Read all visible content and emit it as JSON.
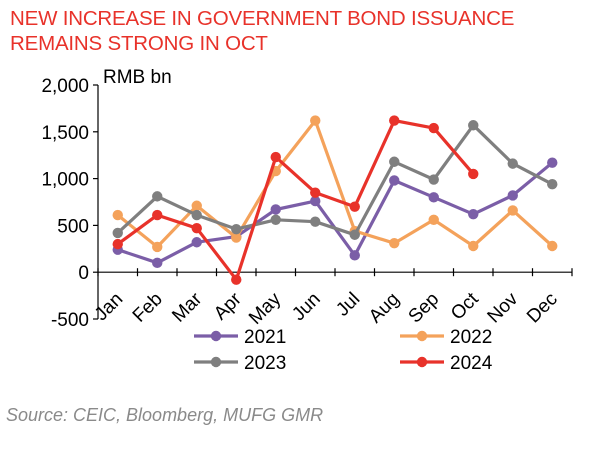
{
  "title_lines": [
    "NEW INCREASE IN GOVERNMENT BOND ISSUANCE",
    "REMAINS STRONG IN OCT"
  ],
  "source": "Source: CEIC, Bloomberg, MUFG GMR",
  "chart_data": {
    "type": "line",
    "title": "NEW INCREASE IN GOVERNMENT BOND ISSUANCE REMAINS STRONG IN OCT",
    "ylabel": "RMB bn",
    "xlabel": "",
    "ylim": [
      -500,
      2000
    ],
    "yticks": [
      -500,
      0,
      500,
      1000,
      1500,
      2000
    ],
    "ytick_labels": [
      "-500",
      "0",
      "500",
      "1,000",
      "1,500",
      "2,000"
    ],
    "categories": [
      "Jan",
      "Feb",
      "Mar",
      "Apr",
      "May",
      "Jun",
      "Jul",
      "Aug",
      "Sep",
      "Oct",
      "Nov",
      "Dec"
    ],
    "grid": false,
    "legend": "bottom",
    "series": [
      {
        "name": "2021",
        "color": "#7b5ea7",
        "values": [
          240,
          100,
          320,
          380,
          670,
          760,
          180,
          980,
          800,
          620,
          820,
          1170
        ]
      },
      {
        "name": "2022",
        "color": "#f4a25b",
        "values": [
          610,
          270,
          710,
          370,
          1080,
          1620,
          440,
          310,
          560,
          280,
          660,
          280
        ]
      },
      {
        "name": "2023",
        "color": "#7f7f7f",
        "values": [
          420,
          810,
          610,
          460,
          560,
          540,
          400,
          1180,
          990,
          1570,
          1160,
          940
        ]
      },
      {
        "name": "2024",
        "color": "#e8322a",
        "values": [
          300,
          610,
          470,
          -80,
          1230,
          850,
          700,
          1620,
          1540,
          1050,
          null,
          null
        ]
      }
    ]
  }
}
